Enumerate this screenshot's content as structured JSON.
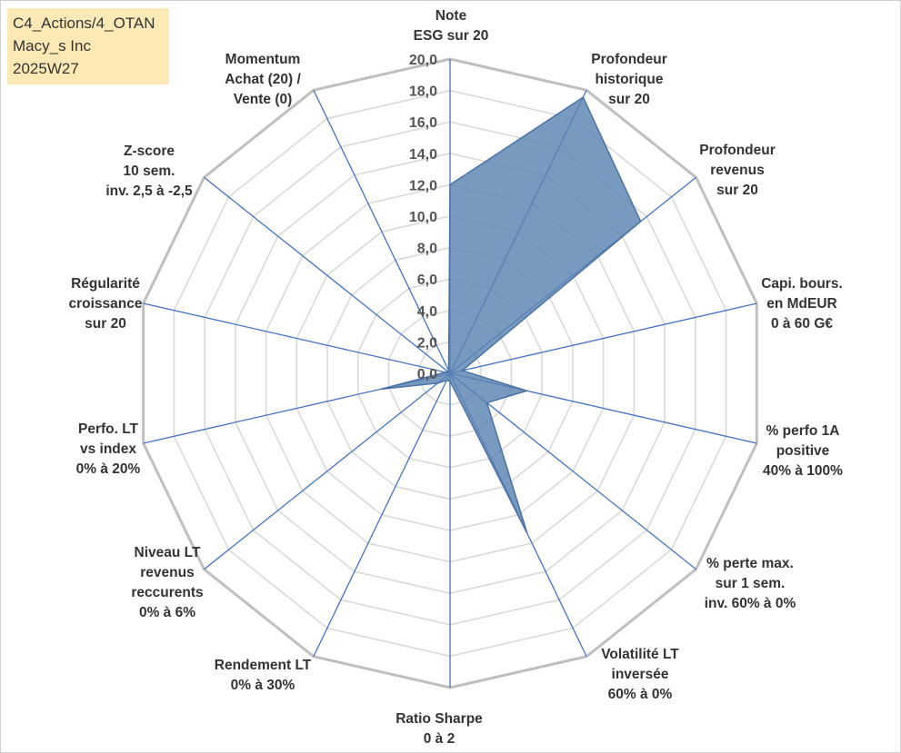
{
  "info": {
    "line1": "C4_Actions/4_OTAN",
    "line2": "Macy_s Inc",
    "line3": "2025W27"
  },
  "chart_data": {
    "type": "radar",
    "rmax": 20,
    "ticks": [
      "0,0",
      "2,0",
      "4,0",
      "6,0",
      "8,0",
      "10,0",
      "12,0",
      "14,0",
      "16,0",
      "18,0",
      "20,0"
    ],
    "axes": [
      {
        "label": [
          "Note",
          "ESG sur 20"
        ]
      },
      {
        "label": [
          "Profondeur",
          "historique",
          "sur 20"
        ]
      },
      {
        "label": [
          "Profondeur",
          "revenus",
          "sur 20"
        ]
      },
      {
        "label": [
          "Capi. bours.",
          "en MdEUR",
          "0 à 60 G€"
        ]
      },
      {
        "label": [
          "% perfo 1A",
          "positive",
          "40% à 100%"
        ]
      },
      {
        "label": [
          "% perte max.",
          "sur 1 sem.",
          "inv. 60% à 0%"
        ]
      },
      {
        "label": [
          "Volatilité LT",
          "inversée",
          "60% à 0%"
        ]
      },
      {
        "label": [
          "Ratio Sharpe",
          "0 à 2"
        ]
      },
      {
        "label": [
          "Rendement LT",
          "0% à 30%"
        ]
      },
      {
        "label": [
          "Niveau LT",
          "revenus",
          "reccurents",
          "0% à 6%"
        ]
      },
      {
        "label": [
          "Perfo. LT",
          "vs index",
          "0% à 20%"
        ]
      },
      {
        "label": [
          "Régularité",
          "croissance",
          "sur 20"
        ]
      },
      {
        "label": [
          "Z-score",
          "10 sem.",
          "inv. 2,5 à -2,5"
        ]
      },
      {
        "label": [
          "Momentum",
          "Achat (20) /",
          "Vente (0)"
        ]
      }
    ],
    "series": [
      {
        "values": [
          12.0,
          19.5,
          15.5,
          0.8,
          5.0,
          3.0,
          11.3,
          0.5,
          0.5,
          1.0,
          4.5,
          0.3,
          0.2,
          0.2
        ]
      }
    ]
  }
}
